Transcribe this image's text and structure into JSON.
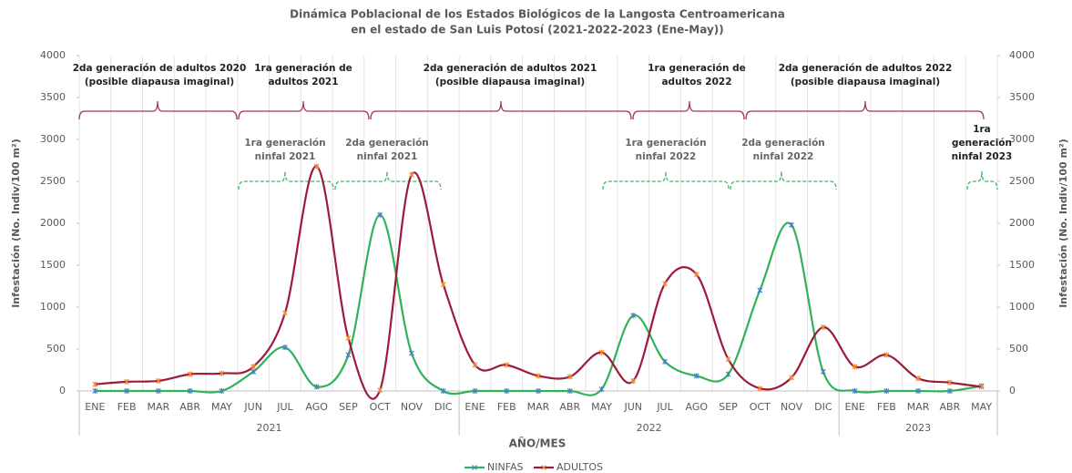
{
  "chart_data": {
    "type": "line",
    "title": [
      "Dinámica Poblacional de los Estados Biológicos de la Langosta Centroamericana",
      "en el estado de San Luis Potosí (2021-2022-2023 (Ene-May))"
    ],
    "categories": [
      "ENE",
      "FEB",
      "MAR",
      "ABR",
      "MAY",
      "JUN",
      "JUL",
      "AGO",
      "SEP",
      "OCT",
      "NOV",
      "DIC",
      "ENE",
      "FEB",
      "MAR",
      "ABR",
      "MAY",
      "JUN",
      "JUL",
      "AGO",
      "SEP",
      "OCT",
      "NOV",
      "DIC",
      "ENE",
      "FEB",
      "MAR",
      "ABR",
      "MAY"
    ],
    "groups": [
      "2021",
      "2022",
      "2023"
    ],
    "x_label": "AÑO/MES",
    "y_label": "Infestación (No. Indiv/100 m²)",
    "y2_label": "Infestación (No. Indiv/100 m²)",
    "ylim": [
      0,
      4000
    ],
    "yticks": [
      0,
      500,
      1000,
      1500,
      2000,
      2500,
      3000,
      3500,
      4000
    ],
    "y2lim": [
      0,
      4000
    ],
    "y2ticks": [
      0,
      500,
      1000,
      1500,
      2000,
      2500,
      3000,
      3500,
      4000
    ],
    "series": [
      {
        "name": "NINFAS",
        "color": "#2fb25a",
        "values": [
          0,
          0,
          0,
          0,
          0,
          230,
          520,
          50,
          430,
          2100,
          450,
          0,
          0,
          0,
          0,
          0,
          20,
          900,
          350,
          180,
          200,
          1200,
          1980,
          230,
          0,
          0,
          0,
          0,
          60
        ]
      },
      {
        "name": "ADULTOS",
        "color": "#9b1c3a",
        "values": [
          80,
          110,
          120,
          200,
          210,
          290,
          930,
          2680,
          630,
          10,
          2580,
          1270,
          310,
          310,
          180,
          170,
          460,
          120,
          1280,
          1390,
          380,
          30,
          160,
          760,
          290,
          430,
          150,
          100,
          50
        ]
      }
    ],
    "adult_annotations": [
      [
        "2da generación de adultos 2020",
        "(posible diapausa imaginal)"
      ],
      [
        "1ra generación de",
        "adultos 2021"
      ],
      [
        "2da generación de adultos 2021",
        "(posible diapausa imaginal)"
      ],
      [
        "1ra generación de",
        "adultos 2022"
      ],
      [
        "2da generación de adultos 2022",
        "(posible diapausa imaginal)"
      ]
    ],
    "nymph_annotations": [
      [
        "1ra generación",
        "ninfal 2021"
      ],
      [
        "2da generación",
        "ninfal 2021"
      ],
      [
        "1ra generación",
        "ninfal 2022"
      ],
      [
        "2da generación",
        "ninfal 2022"
      ],
      [
        "1ra",
        "generación",
        "ninfal 2023"
      ]
    ]
  }
}
